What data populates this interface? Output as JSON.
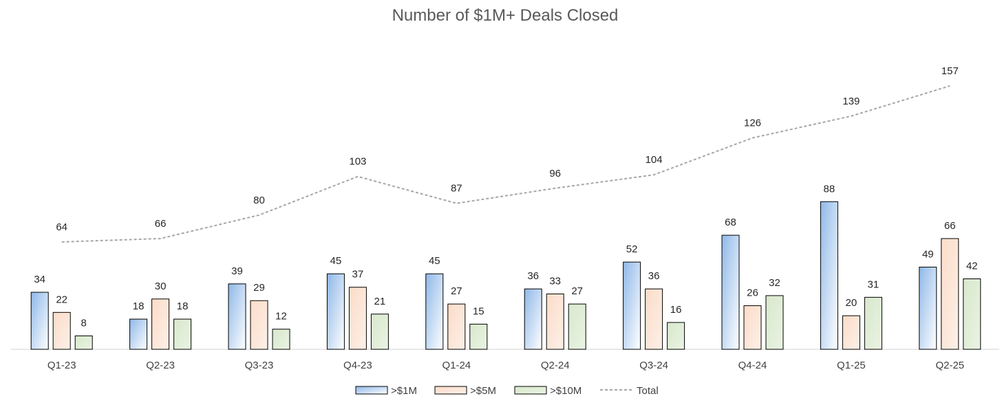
{
  "chart_data": {
    "type": "bar",
    "title": "Number of $1M+ Deals Closed",
    "xlabel": "",
    "ylabel": "",
    "categories": [
      "Q1-23",
      "Q2-23",
      "Q3-23",
      "Q4-23",
      "Q1-24",
      "Q2-24",
      "Q3-24",
      "Q4-24",
      "Q1-25",
      "Q2-25"
    ],
    "series": [
      {
        "name": ">$1M",
        "kind": "bar",
        "color": "#9dc3e6",
        "values": [
          34,
          18,
          39,
          45,
          45,
          36,
          52,
          68,
          88,
          49
        ]
      },
      {
        "name": ">$5M",
        "kind": "bar",
        "color": "#f8cbad",
        "values": [
          22,
          30,
          29,
          37,
          27,
          33,
          36,
          26,
          20,
          66
        ]
      },
      {
        "name": ">$10M",
        "kind": "bar",
        "color": "#c5e0b4",
        "values": [
          8,
          18,
          12,
          21,
          15,
          27,
          16,
          32,
          31,
          42
        ]
      },
      {
        "name": "Total",
        "kind": "line",
        "style": "dashed",
        "color": "#a6a6a6",
        "values": [
          64,
          66,
          80,
          103,
          87,
          96,
          104,
          126,
          139,
          157
        ]
      }
    ],
    "ylim": [
      0,
      170
    ],
    "grid": false,
    "legend": "bottom",
    "data_labels": true
  }
}
